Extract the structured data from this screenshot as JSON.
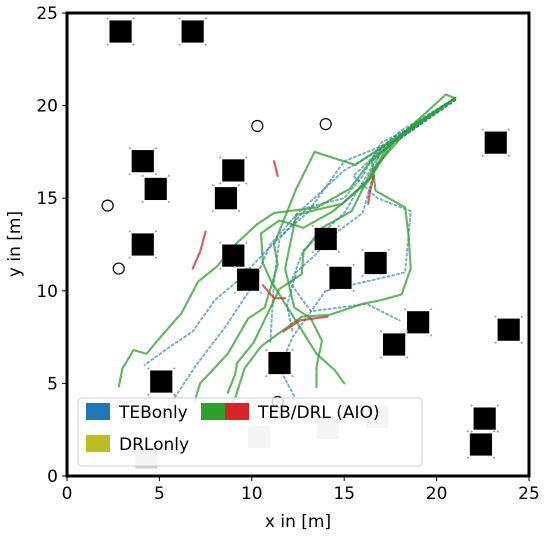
{
  "chart_data": {
    "type": "scatter",
    "xlabel": "x in [m]",
    "ylabel": "y in [m]",
    "xlim": [
      0,
      25
    ],
    "ylim": [
      0,
      25
    ],
    "xticks": [
      "0",
      "5",
      "10",
      "15",
      "20",
      "25"
    ],
    "yticks": [
      "0",
      "5",
      "10",
      "15",
      "20",
      "25"
    ],
    "grid": false,
    "legend_position": "bottom-left",
    "legend": [
      {
        "label": "TEBonly",
        "colors": [
          "#1f77b4"
        ]
      },
      {
        "label": "TEB/DRL (AIO)",
        "colors": [
          "#2ca02c",
          "#d62728"
        ]
      },
      {
        "label": "DRLonly",
        "colors": [
          "#bcbd22"
        ]
      }
    ],
    "obstacles": [
      {
        "x": 2.9,
        "y": 24.0,
        "size": 1.2
      },
      {
        "x": 6.8,
        "y": 24.0,
        "size": 1.2
      },
      {
        "x": 23.2,
        "y": 18.0,
        "size": 1.2
      },
      {
        "x": 4.1,
        "y": 17.0,
        "size": 1.2
      },
      {
        "x": 9.0,
        "y": 16.5,
        "size": 1.2
      },
      {
        "x": 4.8,
        "y": 15.5,
        "size": 1.2
      },
      {
        "x": 8.6,
        "y": 15.0,
        "size": 1.2
      },
      {
        "x": 14.0,
        "y": 12.8,
        "size": 1.2
      },
      {
        "x": 4.1,
        "y": 12.5,
        "size": 1.2
      },
      {
        "x": 9.0,
        "y": 11.9,
        "size": 1.2
      },
      {
        "x": 16.7,
        "y": 11.5,
        "size": 1.2
      },
      {
        "x": 14.8,
        "y": 10.7,
        "size": 1.2
      },
      {
        "x": 9.8,
        "y": 10.6,
        "size": 1.2
      },
      {
        "x": 19.0,
        "y": 8.3,
        "size": 1.2
      },
      {
        "x": 23.9,
        "y": 7.9,
        "size": 1.2
      },
      {
        "x": 17.7,
        "y": 7.1,
        "size": 1.2
      },
      {
        "x": 11.5,
        "y": 6.1,
        "size": 1.2
      },
      {
        "x": 5.1,
        "y": 5.1,
        "size": 1.2
      },
      {
        "x": 22.6,
        "y": 3.1,
        "size": 1.2
      },
      {
        "x": 22.4,
        "y": 1.7,
        "size": 1.2
      }
    ],
    "faded_obstacles": [
      {
        "x": 10.4,
        "y": 2.1,
        "size": 1.2
      },
      {
        "x": 14.1,
        "y": 2.6,
        "size": 1.2
      },
      {
        "x": 16.8,
        "y": 3.2,
        "size": 1.2
      },
      {
        "x": 4.3,
        "y": 1.0,
        "size": 1.2
      }
    ],
    "circles": [
      {
        "x": 2.2,
        "y": 14.6
      },
      {
        "x": 2.8,
        "y": 11.2
      },
      {
        "x": 10.3,
        "y": 18.9
      },
      {
        "x": 14.0,
        "y": 19.0
      },
      {
        "x": 11.4,
        "y": 4.0
      }
    ],
    "series": [
      {
        "method": "TEBonly",
        "color": "#1f77b4",
        "points": [
          [
            21,
            20.3
          ],
          [
            18,
            18.2
          ],
          [
            15,
            16.5
          ],
          [
            12.5,
            14.2
          ],
          [
            11,
            12.5
          ],
          [
            10,
            10.2
          ],
          [
            8.6,
            8.1
          ],
          [
            7,
            6
          ],
          [
            6,
            4.5
          ],
          [
            5,
            3
          ]
        ]
      },
      {
        "method": "TEBonly",
        "color": "#1f77b4",
        "points": [
          [
            21,
            20.4
          ],
          [
            19,
            19
          ],
          [
            17,
            18
          ],
          [
            16,
            16.2
          ],
          [
            15,
            15
          ],
          [
            13,
            14.5
          ],
          [
            11.5,
            12.8
          ],
          [
            11.2,
            10.5
          ],
          [
            11.1,
            8.8
          ],
          [
            11,
            7.2
          ]
        ]
      },
      {
        "method": "TEBonly",
        "color": "#1f77b4",
        "points": [
          [
            21,
            20.4
          ],
          [
            18,
            18.6
          ],
          [
            15.5,
            16.2
          ],
          [
            16.8,
            15
          ],
          [
            18.6,
            14.3
          ],
          [
            18.3,
            11
          ],
          [
            17.5,
            10.8
          ],
          [
            14,
            10
          ],
          [
            12.2,
            7.5
          ],
          [
            11.5,
            5.8
          ],
          [
            12.3,
            4.3
          ]
        ]
      },
      {
        "method": "TEBonly",
        "color": "#1f77b4",
        "points": [
          [
            21,
            20.3
          ],
          [
            17,
            17.5
          ],
          [
            15,
            14.2
          ],
          [
            12.8,
            12.2
          ],
          [
            12.1,
            10.4
          ],
          [
            13.2,
            8.9
          ],
          [
            14.8,
            9.1
          ],
          [
            16.2,
            9.3
          ],
          [
            18,
            8.4
          ]
        ]
      },
      {
        "method": "TEBonly",
        "color": "#1f77b4",
        "points": [
          [
            21,
            20.3
          ],
          [
            18,
            18.2
          ],
          [
            15,
            17
          ],
          [
            13,
            14.2
          ],
          [
            11.6,
            13
          ],
          [
            9.2,
            10.5
          ],
          [
            8,
            9.5
          ],
          [
            6.8,
            7.8
          ],
          [
            5.6,
            7
          ],
          [
            4.2,
            6
          ]
        ]
      },
      {
        "method": "TEBonly",
        "color": "#1f77b4",
        "points": [
          [
            21,
            20.4
          ],
          [
            17,
            17.8
          ],
          [
            16,
            14.2
          ],
          [
            14.5,
            13.1
          ],
          [
            13.4,
            11.9
          ],
          [
            12.4,
            11
          ],
          [
            11.9,
            9.2
          ],
          [
            12.2,
            7.8
          ]
        ]
      },
      {
        "method": "TEB/DRL (AIO)",
        "color": "#2ca02c",
        "points": [
          [
            21,
            20.4
          ],
          [
            20.5,
            20.6
          ],
          [
            18.2,
            18.5
          ],
          [
            16.5,
            17
          ],
          [
            16.7,
            15.4
          ],
          [
            18.3,
            14.5
          ],
          [
            18.5,
            12.8
          ],
          [
            18.6,
            11.2
          ],
          [
            18.1,
            9.8
          ],
          [
            17,
            9.5
          ],
          [
            16,
            9.3
          ],
          [
            14.2,
            8.7
          ],
          [
            12.7,
            8.6
          ],
          [
            11.6,
            7.8
          ],
          [
            10.5,
            7
          ],
          [
            9.6,
            5.8
          ],
          [
            9.1,
            4.2
          ],
          [
            8.6,
            3.4
          ]
        ]
      },
      {
        "method": "TEB/DRL (AIO)",
        "color": "#2ca02c",
        "points": [
          [
            21,
            20.4
          ],
          [
            18,
            18.4
          ],
          [
            15.6,
            16.8
          ],
          [
            13.4,
            17.5
          ],
          [
            12.4,
            15.5
          ],
          [
            11.8,
            14
          ],
          [
            11.2,
            12.5
          ],
          [
            11.4,
            11.4
          ],
          [
            10.7,
            9.1
          ],
          [
            9.8,
            8.5
          ],
          [
            8.7,
            6.6
          ],
          [
            7.2,
            5
          ],
          [
            6.9,
            4
          ]
        ]
      },
      {
        "method": "TEB/DRL (AIO)",
        "color": "#2ca02c",
        "points": [
          [
            21,
            20.4
          ],
          [
            17.4,
            17.9
          ],
          [
            16.4,
            16.1
          ],
          [
            14.9,
            14.7
          ],
          [
            13.6,
            14.4
          ],
          [
            12.4,
            14.1
          ],
          [
            11.8,
            11.2
          ],
          [
            12.3,
            9.1
          ],
          [
            13.2,
            8.5
          ],
          [
            13.8,
            7.3
          ],
          [
            13.5,
            5.9
          ],
          [
            13.5,
            4.8
          ]
        ]
      },
      {
        "method": "TEB/DRL (AIO)",
        "color": "#2ca02c",
        "points": [
          [
            21,
            20.4
          ],
          [
            18.7,
            18.9
          ],
          [
            16.5,
            17.1
          ],
          [
            15.3,
            15.5
          ],
          [
            13.5,
            14.5
          ],
          [
            11.2,
            14.2
          ],
          [
            10.3,
            13.6
          ],
          [
            9.1,
            12.5
          ],
          [
            8.1,
            11.3
          ],
          [
            7.1,
            10.5
          ],
          [
            6.2,
            8.8
          ],
          [
            5.5,
            8
          ],
          [
            4.8,
            7.2
          ],
          [
            4.3,
            6.6
          ],
          [
            3.6,
            6.8
          ],
          [
            3,
            5.8
          ],
          [
            2.8,
            4.8
          ]
        ]
      },
      {
        "method": "TEB/DRL (AIO)",
        "color": "#2ca02c",
        "points": [
          [
            21,
            20.4
          ],
          [
            18.2,
            18.4
          ],
          [
            16.5,
            16.5
          ],
          [
            15.4,
            14.3
          ],
          [
            13.8,
            13.4
          ],
          [
            12.8,
            12.1
          ],
          [
            12.7,
            10.9
          ],
          [
            11.5,
            10.1
          ],
          [
            10.1,
            7.2
          ],
          [
            9.2,
            6.1
          ],
          [
            9.1,
            5.5
          ],
          [
            8.7,
            4.5
          ]
        ]
      },
      {
        "method": "TEB/DRL (AIO)",
        "color": "#2ca02c",
        "points": [
          [
            21,
            20.4
          ],
          [
            17.7,
            18.1
          ],
          [
            16.3,
            15.9
          ],
          [
            14.4,
            14.3
          ],
          [
            12.8,
            13.4
          ],
          [
            11.5,
            13.8
          ],
          [
            10.5,
            13.1
          ],
          [
            10.6,
            11.5
          ],
          [
            11,
            10.6
          ],
          [
            11.8,
            9.3
          ],
          [
            12.5,
            8.2
          ],
          [
            13.5,
            6.6
          ],
          [
            14.5,
            5.7
          ],
          [
            15,
            5
          ]
        ]
      },
      {
        "method": "TEB/DRL (AIO)",
        "color": "#d62728",
        "points": [
          [
            16.6,
            16.2
          ],
          [
            16.4,
            15.4
          ],
          [
            16.3,
            14.7
          ]
        ]
      },
      {
        "method": "TEB/DRL (AIO)",
        "color": "#d62728",
        "points": [
          [
            14.1,
            8.6
          ],
          [
            12.6,
            8.4
          ],
          [
            11.7,
            7.8
          ]
        ]
      },
      {
        "method": "TEB/DRL (AIO)",
        "color": "#d62728",
        "points": [
          [
            7.5,
            13.2
          ],
          [
            7.2,
            12.1
          ],
          [
            6.8,
            11.2
          ]
        ]
      },
      {
        "method": "TEB/DRL (AIO)",
        "color": "#d62728",
        "points": [
          [
            11.2,
            17
          ],
          [
            11.4,
            16.2
          ]
        ]
      },
      {
        "method": "TEB/DRL (AIO)",
        "color": "#d62728",
        "points": [
          [
            10.6,
            10.3
          ],
          [
            11.2,
            9.6
          ],
          [
            11.8,
            9.6
          ]
        ]
      }
    ]
  }
}
